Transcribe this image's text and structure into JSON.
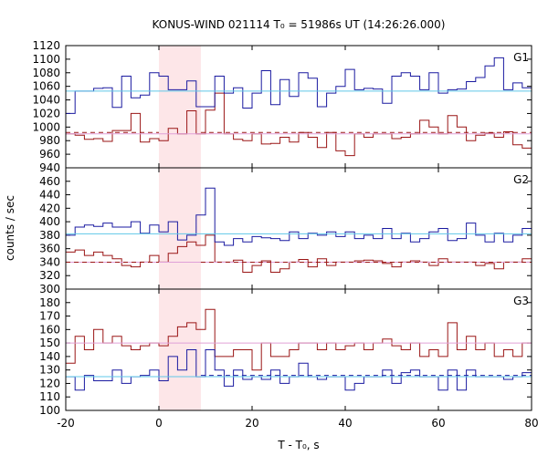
{
  "chart_data": {
    "type": "line",
    "title": "KONUS-WIND 021114 T₀ = 51986s UT (14:26:26.000)",
    "xlabel": "T - T₀, s",
    "ylabel": "counts / sec",
    "xlim": [
      -20,
      80
    ],
    "x_ticks": [
      -20,
      0,
      20,
      40,
      60,
      80
    ],
    "bin_width": 2,
    "x_start": -20,
    "highlight_interval": [
      0,
      9
    ],
    "colors": {
      "blue": "#1a1aa0",
      "red": "#9a1515",
      "cyan": "#5fc8e8",
      "pink": "#e0a0d8",
      "shade": "#fde6e8"
    },
    "panels": [
      {
        "label": "G1",
        "ylim": [
          940,
          1120
        ],
        "y_ticks": [
          940,
          960,
          980,
          1000,
          1020,
          1040,
          1060,
          1080,
          1100,
          1120
        ],
        "blue_values": [
          1020,
          1053,
          1053,
          1057,
          1058,
          1029,
          1075,
          1043,
          1047,
          1080,
          1075,
          1055,
          1055,
          1068,
          1030,
          1030,
          1075,
          1050,
          1058,
          1028,
          1050,
          1083,
          1033,
          1070,
          1045,
          1080,
          1072,
          1030,
          1050,
          1060,
          1085,
          1055,
          1057,
          1056,
          1035,
          1075,
          1080,
          1075,
          1055,
          1080,
          1050,
          1055,
          1056,
          1067,
          1073,
          1090,
          1102,
          1055,
          1065,
          1058
        ],
        "red_values": [
          990,
          988,
          982,
          983,
          979,
          995,
          995,
          1020,
          978,
          983,
          980,
          998,
          990,
          1024,
          990,
          1025,
          1050,
          990,
          982,
          980,
          990,
          975,
          976,
          985,
          978,
          992,
          985,
          970,
          992,
          965,
          958,
          990,
          985,
          990,
          990,
          983,
          985,
          990,
          1010,
          1000,
          990,
          1017,
          1000,
          980,
          988,
          991,
          985,
          993,
          974,
          969
        ],
        "cyan_level": 1053,
        "pink_level": 990,
        "blue_post_level": null,
        "red_post_level": 992
      },
      {
        "label": "G2",
        "ylim": [
          300,
          480
        ],
        "y_ticks": [
          300,
          320,
          340,
          360,
          380,
          400,
          420,
          440,
          460
        ],
        "blue_values": [
          380,
          392,
          395,
          393,
          398,
          392,
          392,
          400,
          383,
          395,
          385,
          400,
          373,
          380,
          410,
          450,
          370,
          365,
          375,
          370,
          378,
          376,
          375,
          372,
          385,
          375,
          383,
          380,
          385,
          378,
          385,
          375,
          380,
          375,
          390,
          375,
          383,
          370,
          375,
          385,
          390,
          372,
          375,
          398,
          380,
          370,
          383,
          370,
          380,
          390
        ],
        "red_values": [
          355,
          358,
          350,
          355,
          350,
          345,
          335,
          333,
          340,
          350,
          340,
          353,
          363,
          370,
          365,
          380,
          340,
          340,
          343,
          325,
          335,
          342,
          325,
          330,
          340,
          344,
          333,
          345,
          335,
          340,
          340,
          342,
          343,
          342,
          338,
          333,
          340,
          342,
          340,
          335,
          345,
          340,
          340,
          340,
          335,
          338,
          330,
          340,
          340,
          345
        ],
        "cyan_level": 382,
        "pink_level": 340,
        "blue_post_level": null,
        "red_post_level": 340
      },
      {
        "label": "G3",
        "ylim": [
          100,
          190
        ],
        "y_ticks": [
          100,
          110,
          120,
          130,
          140,
          150,
          160,
          170,
          180
        ],
        "blue_values": [
          125,
          115,
          126,
          122,
          122,
          130,
          120,
          125,
          126,
          130,
          122,
          140,
          130,
          145,
          125,
          145,
          130,
          118,
          130,
          123,
          125,
          123,
          130,
          120,
          125,
          135,
          125,
          123,
          125,
          125,
          115,
          120,
          125,
          125,
          130,
          120,
          128,
          130,
          125,
          125,
          115,
          130,
          115,
          130,
          125,
          125,
          125,
          123,
          125,
          128
        ],
        "red_values": [
          135,
          155,
          145,
          160,
          150,
          155,
          148,
          145,
          148,
          150,
          148,
          155,
          162,
          165,
          160,
          175,
          140,
          140,
          145,
          145,
          130,
          150,
          140,
          140,
          145,
          150,
          150,
          145,
          150,
          145,
          148,
          150,
          145,
          150,
          153,
          148,
          145,
          150,
          140,
          145,
          140,
          165,
          145,
          155,
          145,
          150,
          140,
          145,
          140,
          150
        ],
        "cyan_level": 125,
        "pink_level": 150,
        "blue_post_level": 126,
        "red_post_level": null
      }
    ]
  }
}
